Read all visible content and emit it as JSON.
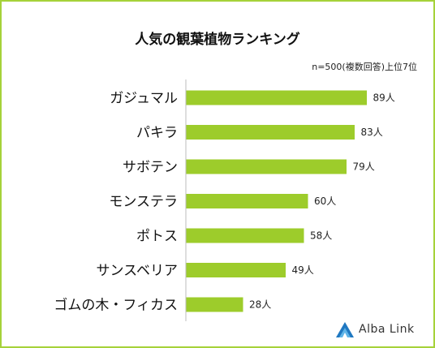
{
  "chart_data": {
    "type": "bar",
    "orientation": "horizontal",
    "title": "人気の観葉植物ランキング",
    "note": "n=500(複数回答)上位7位",
    "categories": [
      "ガジュマル",
      "パキラ",
      "サボテン",
      "モンステラ",
      "ポトス",
      "サンスベリア",
      "ゴムの木・フィカス"
    ],
    "values": [
      89,
      83,
      79,
      60,
      58,
      49,
      28
    ],
    "data_labels": [
      "89人",
      "83人",
      "79人",
      "60人",
      "58人",
      "49人",
      "28人"
    ],
    "unit": "人",
    "xlim": [
      0,
      100
    ],
    "grid": false,
    "bar_color": "#9dcc2b"
  },
  "brand": {
    "name": "Alba Link",
    "logo_icon": "triangle-logo-icon",
    "frame_color": "#a5d23a",
    "logo_color": "#2f8fd0"
  }
}
